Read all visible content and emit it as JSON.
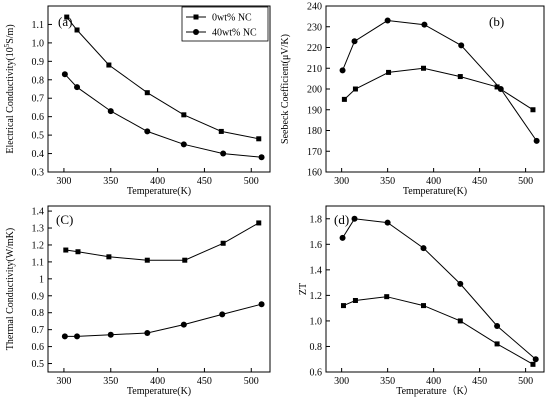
{
  "chart_data": [
    {
      "type": "line",
      "panel_label": "(a)",
      "xlabel": "Temperature(K)",
      "ylabel": "Electrical Conductivity(10",
      "ylabel_sup": "5",
      "ylabel_tail": "S/m)",
      "xlim": [
        283,
        520
      ],
      "ylim": [
        0.3,
        1.2
      ],
      "xticks": [
        300,
        350,
        400,
        450,
        500
      ],
      "yticks": [
        0.3,
        0.4,
        0.5,
        0.6,
        0.7,
        0.8,
        0.9,
        1.0,
        1.1
      ],
      "ytick_labels": [
        "0.3",
        "0.4",
        "0.5",
        "0.6",
        "0.7",
        "0.8",
        "0.9",
        "1.0",
        "1.1"
      ],
      "legend_position": "top-right",
      "series": [
        {
          "name": "0wt% NC",
          "marker": "square",
          "x": [
            303,
            314,
            348,
            389,
            428,
            468,
            508
          ],
          "y": [
            1.14,
            1.07,
            0.88,
            0.73,
            0.61,
            0.52,
            0.48
          ]
        },
        {
          "name": "40wt% NC",
          "marker": "circle",
          "x": [
            301,
            314,
            350,
            389,
            428,
            470,
            511
          ],
          "y": [
            0.83,
            0.76,
            0.63,
            0.52,
            0.45,
            0.4,
            0.38
          ]
        }
      ]
    },
    {
      "type": "line",
      "panel_label": "(b)",
      "xlabel": "Temperature(K)",
      "ylabel": "Seebeck Coefficient(μV/K)",
      "xlim": [
        283,
        520
      ],
      "ylim": [
        160,
        240
      ],
      "xticks": [
        300,
        350,
        400,
        450,
        500
      ],
      "yticks": [
        160,
        170,
        180,
        190,
        200,
        210,
        220,
        230,
        240
      ],
      "ytick_labels": [
        "160",
        "170",
        "180",
        "190",
        "200",
        "210",
        "220",
        "230",
        "240"
      ],
      "series": [
        {
          "marker": "square",
          "x": [
            303,
            315,
            351,
            389,
            429,
            469,
            508
          ],
          "y": [
            195,
            200,
            208,
            210,
            206,
            201,
            190
          ]
        },
        {
          "marker": "circle",
          "x": [
            301,
            314,
            350,
            390,
            430,
            473,
            512
          ],
          "y": [
            209,
            223,
            233,
            231,
            221,
            200,
            175
          ]
        }
      ]
    },
    {
      "type": "line",
      "panel_label": "(C)",
      "xlabel": "Temperature(K)",
      "ylabel": "Thermal Conductivity(W/mK)",
      "xlim": [
        283,
        520
      ],
      "ylim": [
        0.45,
        1.43
      ],
      "xticks": [
        300,
        350,
        400,
        450,
        500
      ],
      "yticks": [
        0.5,
        0.6,
        0.7,
        0.8,
        0.9,
        1.0,
        1.1,
        1.2,
        1.3,
        1.4
      ],
      "ytick_labels": [
        "0.5",
        "0.6",
        "0.7",
        "0.8",
        "0.9",
        "1",
        "1.1",
        "1.2",
        "1.3",
        "1.4"
      ],
      "series": [
        {
          "marker": "square",
          "x": [
            302,
            315,
            348,
            389,
            429,
            470,
            508
          ],
          "y": [
            1.17,
            1.16,
            1.13,
            1.11,
            1.11,
            1.21,
            1.33
          ]
        },
        {
          "marker": "circle",
          "x": [
            301,
            314,
            350,
            389,
            428,
            469,
            511
          ],
          "y": [
            0.66,
            0.66,
            0.67,
            0.68,
            0.73,
            0.79,
            0.85
          ]
        }
      ]
    },
    {
      "type": "line",
      "panel_label": "(d)",
      "xlabel": "Temperature（K）",
      "ylabel": "ZT",
      "xlim": [
        283,
        520
      ],
      "ylim": [
        0.6,
        1.9
      ],
      "xticks": [
        300,
        350,
        400,
        450,
        500
      ],
      "yticks": [
        0.6,
        0.8,
        1.0,
        1.2,
        1.4,
        1.6,
        1.8
      ],
      "ytick_labels": [
        "0.6",
        "0.8",
        "1.0",
        "1.2",
        "1.4",
        "1.6",
        "1.8"
      ],
      "series": [
        {
          "marker": "square",
          "x": [
            302,
            315,
            349,
            389,
            429,
            469,
            508
          ],
          "y": [
            1.12,
            1.16,
            1.19,
            1.12,
            1.0,
            0.82,
            0.66
          ]
        },
        {
          "marker": "circle",
          "x": [
            301,
            314,
            350,
            389,
            429,
            469,
            511
          ],
          "y": [
            1.65,
            1.8,
            1.77,
            1.57,
            1.29,
            0.96,
            0.7
          ]
        }
      ]
    }
  ]
}
